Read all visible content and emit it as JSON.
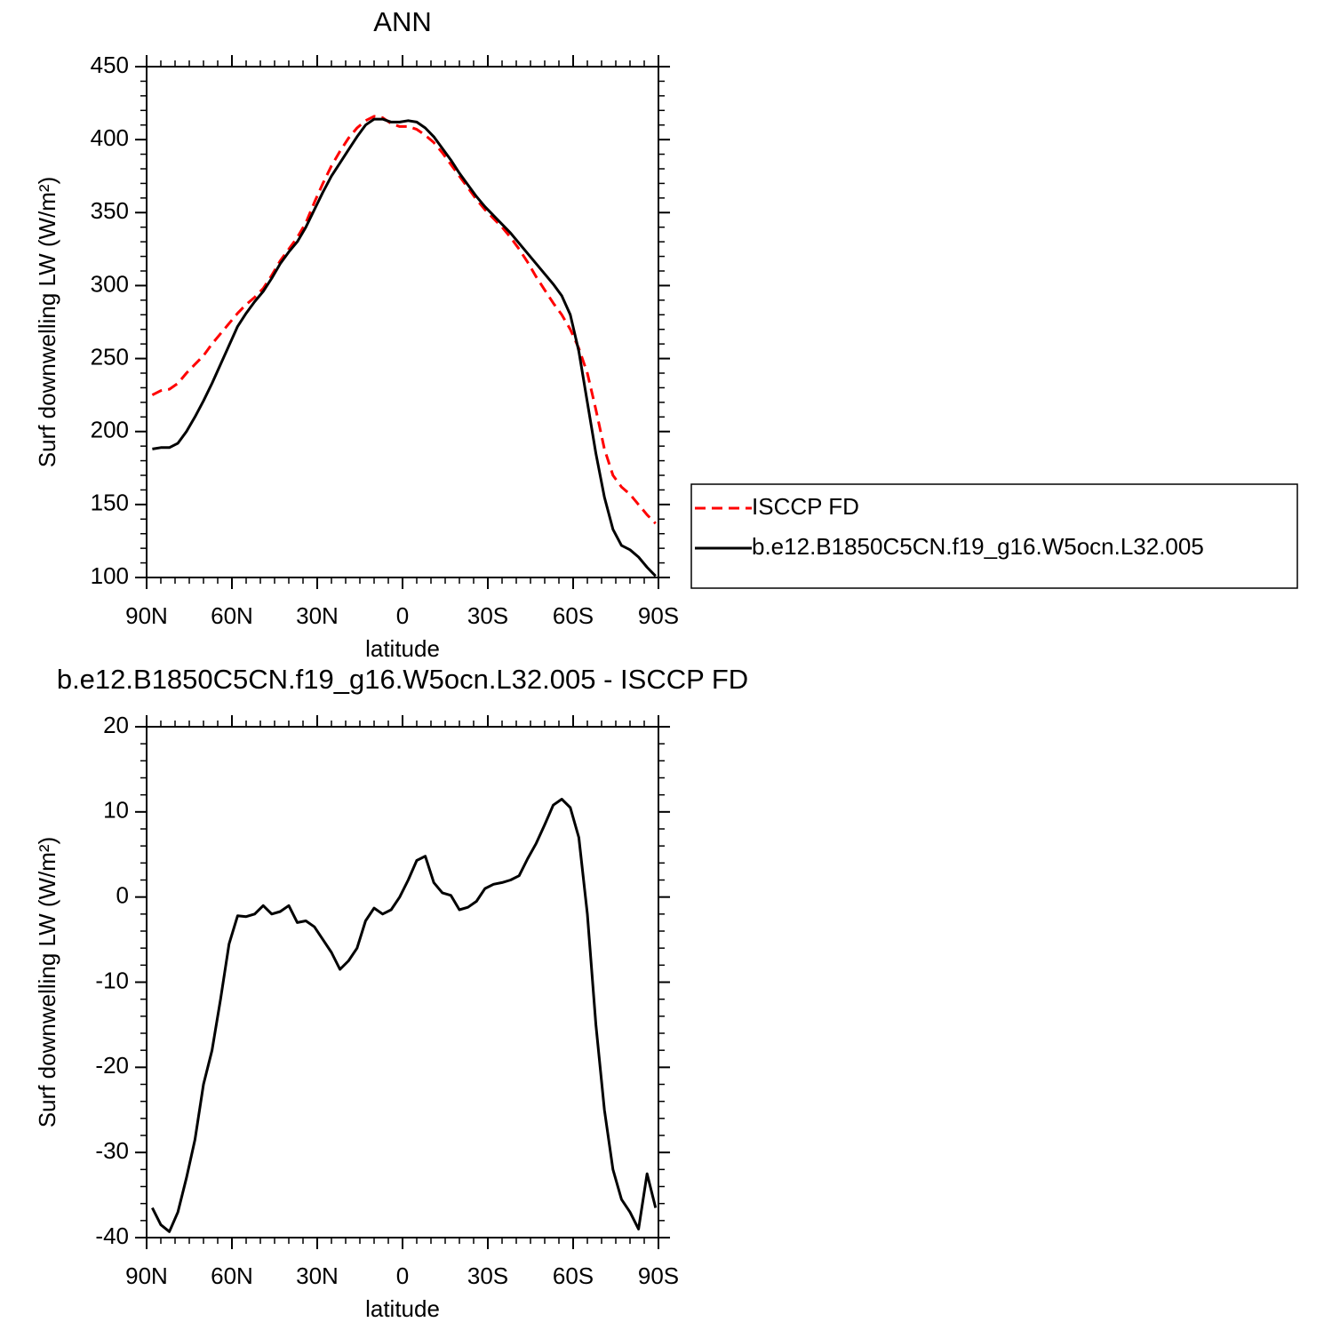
{
  "chart_data": [
    {
      "type": "line",
      "title": "ANN",
      "xlabel": "latitude",
      "ylabel": "Surf downwelling LW (W/m²)",
      "legend": "right",
      "x": [
        88,
        85,
        82,
        79,
        76,
        73,
        70,
        67,
        64,
        61,
        58,
        55,
        52,
        49,
        46,
        43,
        40,
        37,
        34,
        31,
        28,
        25,
        22,
        19,
        16,
        13,
        10,
        7,
        4,
        1,
        -2,
        -5,
        -8,
        -11,
        -14,
        -17,
        -20,
        -23,
        -26,
        -29,
        -32,
        -35,
        -38,
        -41,
        -44,
        -47,
        -50,
        -53,
        -56,
        -59,
        -62,
        -65,
        -68,
        -71,
        -74,
        -77,
        -80,
        -83,
        -86,
        -89
      ],
      "series": [
        {
          "name": "ISCCP FD",
          "color": "#ff0000",
          "dash": "dashed",
          "values": [
            225,
            228,
            229,
            233,
            240,
            246,
            252,
            260,
            267,
            274,
            281,
            287,
            292,
            298,
            307,
            317,
            325,
            333,
            343,
            357,
            370,
            382,
            392,
            401,
            408,
            413,
            416,
            415,
            411,
            409,
            409,
            407,
            403,
            398,
            391,
            383,
            375,
            367,
            359,
            352,
            346,
            340,
            333,
            325,
            316,
            306,
            297,
            288,
            280,
            270,
            257,
            240,
            215,
            188,
            170,
            162,
            157,
            150,
            143,
            137
          ]
        },
        {
          "name": "b.e12.B1850C5CN.f19_g16.W5ocn.L32.005",
          "color": "#000000",
          "dash": "solid",
          "values": [
            188,
            189,
            189,
            192,
            200,
            210,
            221,
            233,
            246,
            259,
            272,
            281,
            289,
            296,
            305,
            315,
            323,
            330,
            340,
            352,
            364,
            375,
            384,
            393,
            402,
            410,
            414,
            414,
            412,
            412,
            413,
            412,
            408,
            402,
            394,
            386,
            377,
            369,
            361,
            354,
            348,
            342,
            336,
            329,
            322,
            315,
            308,
            301,
            293,
            280,
            255,
            220,
            185,
            155,
            133,
            122,
            119,
            114,
            107,
            101
          ]
        }
      ],
      "xlim": [
        90,
        -90
      ],
      "xticks": [
        {
          "value": 90,
          "label": "90N"
        },
        {
          "value": 60,
          "label": "60N"
        },
        {
          "value": 30,
          "label": "30N"
        },
        0,
        {
          "value": -30,
          "label": "30S"
        },
        {
          "value": -60,
          "label": "60S"
        },
        {
          "value": -90,
          "label": "90S"
        }
      ],
      "xminorticks": [
        85,
        80,
        75,
        70,
        65,
        55,
        50,
        45,
        40,
        35,
        25,
        20,
        15,
        10,
        5,
        -5,
        -10,
        -15,
        -20,
        -25,
        -35,
        -40,
        -45,
        -50,
        -55,
        -65,
        -70,
        -75,
        -80,
        -85
      ],
      "ylim": [
        100,
        450
      ],
      "yticks": [
        100,
        150,
        200,
        250,
        300,
        350,
        400,
        450
      ],
      "yminorticks": [
        110,
        120,
        130,
        140,
        160,
        170,
        180,
        190,
        210,
        220,
        230,
        240,
        260,
        270,
        280,
        290,
        310,
        320,
        330,
        340,
        360,
        370,
        380,
        390,
        410,
        420,
        430,
        440
      ]
    },
    {
      "type": "line",
      "title": "b.e12.B1850C5CN.f19_g16.W5ocn.L32.005 - ISCCP FD",
      "xlabel": "latitude",
      "ylabel": "Surf downwelling LW (W/m²)",
      "x": [
        88,
        85,
        82,
        79,
        76,
        73,
        70,
        67,
        64,
        61,
        58,
        55,
        52,
        49,
        46,
        43,
        40,
        37,
        34,
        31,
        28,
        25,
        22,
        19,
        16,
        13,
        10,
        7,
        4,
        1,
        -2,
        -5,
        -8,
        -11,
        -14,
        -17,
        -20,
        -23,
        -26,
        -29,
        -32,
        -35,
        -38,
        -41,
        -44,
        -47,
        -50,
        -53,
        -56,
        -59,
        -62,
        -65,
        -68,
        -71,
        -74,
        -77,
        -80,
        -83,
        -86,
        -89
      ],
      "series": [
        {
          "color": "#000000",
          "dash": "solid",
          "values": [
            -36.5,
            -38.5,
            -39.3,
            -37,
            -33,
            -28.5,
            -22,
            -18,
            -12,
            -5.5,
            -2.2,
            -2.3,
            -2,
            -1,
            -2,
            -1.7,
            -1,
            -3,
            -2.8,
            -3.5,
            -5,
            -6.5,
            -8.5,
            -7.5,
            -6,
            -2.8,
            -1.3,
            -2,
            -1.5,
            0,
            2,
            4.3,
            4.8,
            1.7,
            0.5,
            0.2,
            -1.5,
            -1.2,
            -0.5,
            1,
            1.5,
            1.7,
            2,
            2.5,
            4.5,
            6.3,
            8.5,
            10.8,
            11.5,
            10.5,
            7,
            -2,
            -15,
            -25,
            -32,
            -35.5,
            -37,
            -39,
            -32.5,
            -36.5
          ]
        }
      ],
      "xlim": [
        90,
        -90
      ],
      "xticks": [
        {
          "value": 90,
          "label": "90N"
        },
        {
          "value": 60,
          "label": "60N"
        },
        {
          "value": 30,
          "label": "30N"
        },
        0,
        {
          "value": -30,
          "label": "30S"
        },
        {
          "value": -60,
          "label": "60S"
        },
        {
          "value": -90,
          "label": "90S"
        }
      ],
      "xminorticks": [
        85,
        80,
        75,
        70,
        65,
        55,
        50,
        45,
        40,
        35,
        25,
        20,
        15,
        10,
        5,
        -5,
        -10,
        -15,
        -20,
        -25,
        -35,
        -40,
        -45,
        -50,
        -55,
        -65,
        -70,
        -75,
        -80,
        -85
      ],
      "ylim": [
        -40,
        20
      ],
      "yticks": [
        -40,
        -30,
        -20,
        -10,
        0,
        10,
        20
      ],
      "yminorticks": [
        -38,
        -36,
        -34,
        -32,
        -28,
        -26,
        -24,
        -22,
        -18,
        -16,
        -14,
        -12,
        -8,
        -6,
        -4,
        -2,
        2,
        4,
        6,
        8,
        12,
        14,
        16,
        18
      ]
    }
  ]
}
